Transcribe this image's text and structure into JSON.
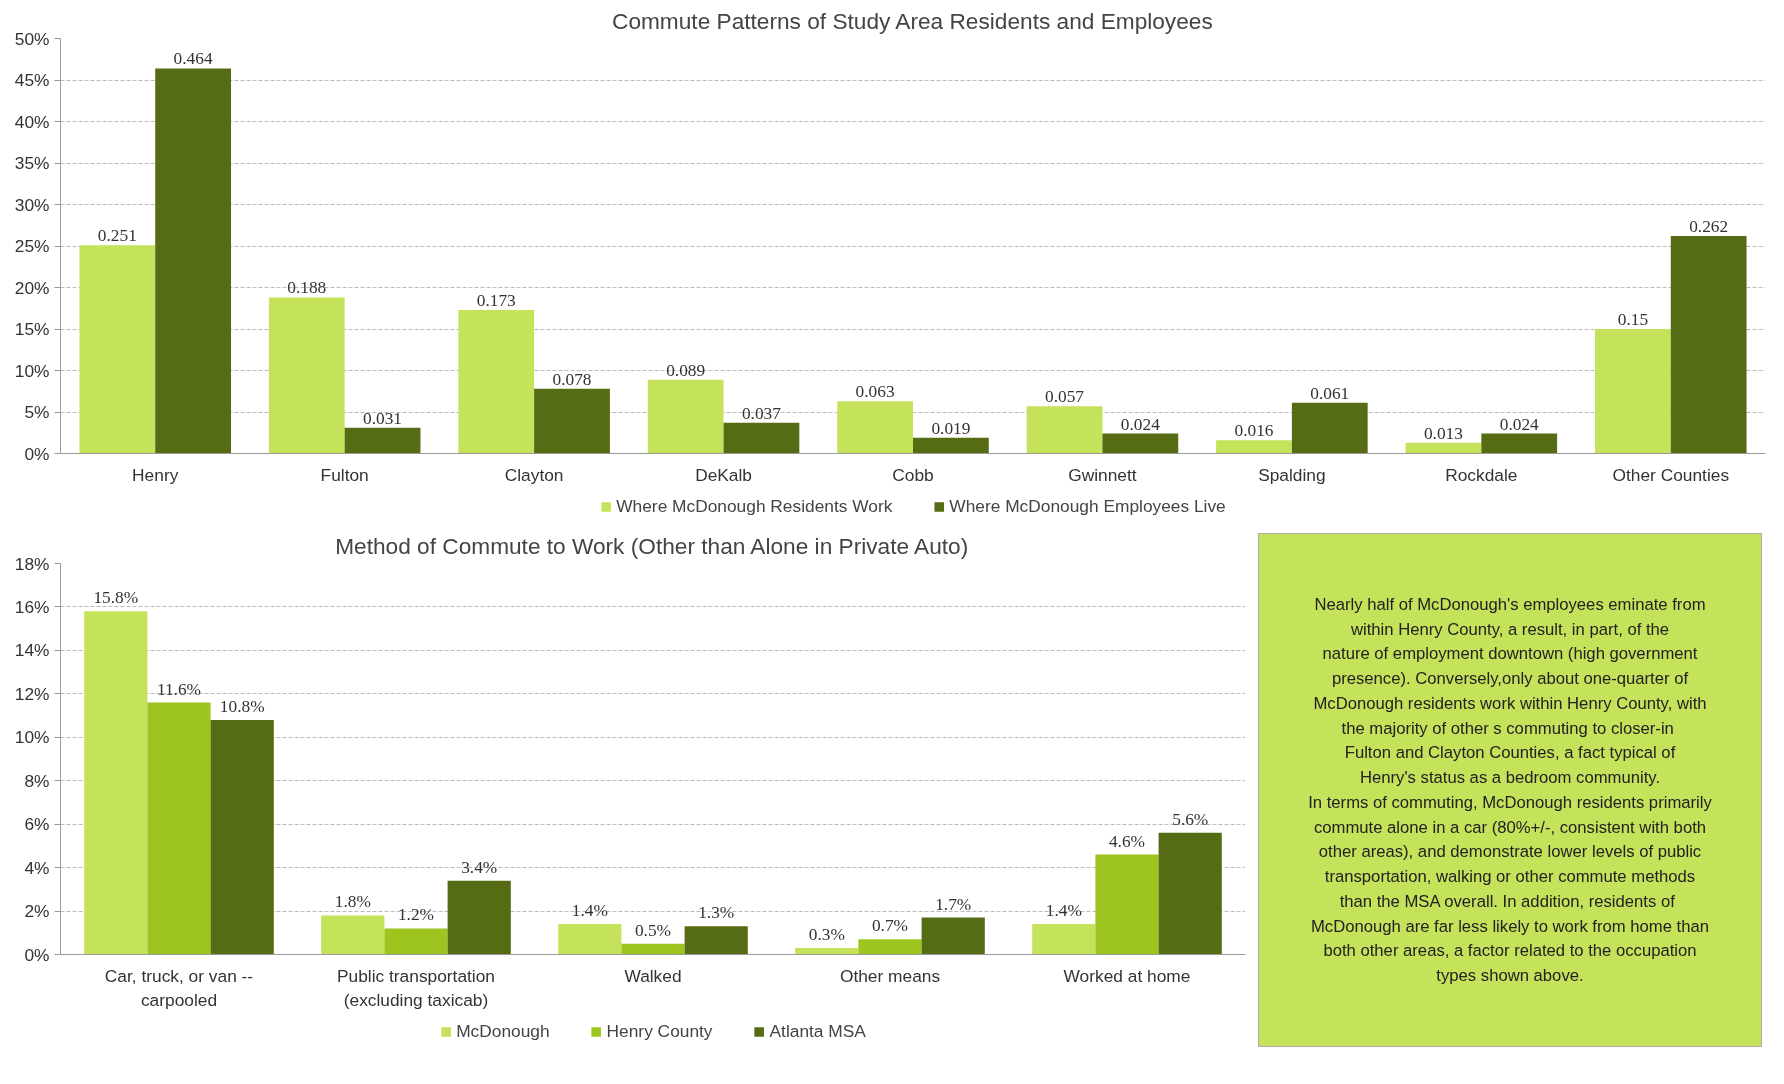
{
  "chart_data": [
    {
      "type": "bar",
      "title": "Commute Patterns of Study Area Residents and Employees",
      "categories": [
        "Henry",
        "Fulton",
        "Clayton",
        "DeKalb",
        "Cobb",
        "Gwinnett",
        "Spalding",
        "Rockdale",
        "Other Counties"
      ],
      "series": [
        {
          "name": "Where McDonough Residents Work",
          "color": "#c4e25a",
          "values": [
            0.251,
            0.188,
            0.173,
            0.089,
            0.063,
            0.057,
            0.016,
            0.013,
            0.15
          ],
          "value_labels": [
            "0.251",
            "0.188",
            "0.173",
            "0.089",
            "0.063",
            "0.057",
            "0.016",
            "0.013",
            "0.15"
          ]
        },
        {
          "name": "Where McDonough Employees Live",
          "color": "#556b14",
          "values": [
            0.464,
            0.031,
            0.078,
            0.037,
            0.019,
            0.024,
            0.061,
            0.024,
            0.262
          ],
          "value_labels": [
            "0.464",
            "0.031",
            "0.078",
            "0.037",
            "0.019",
            "0.024",
            "0.061",
            "0.024",
            "0.262"
          ]
        }
      ],
      "ylim": [
        0,
        0.5
      ],
      "yticks": [
        {
          "value": 0,
          "label": "0%"
        },
        {
          "value": 0.05,
          "label": "5%"
        },
        {
          "value": 0.1,
          "label": "10%"
        },
        {
          "value": 0.15,
          "label": "15%"
        },
        {
          "value": 0.2,
          "label": "20%"
        },
        {
          "value": 0.25,
          "label": "25%"
        },
        {
          "value": 0.3,
          "label": "30%"
        },
        {
          "value": 0.35,
          "label": "35%"
        },
        {
          "value": 0.4,
          "label": "40%"
        },
        {
          "value": 0.45,
          "label": "45%"
        },
        {
          "value": 0.5,
          "label": "50%"
        }
      ],
      "grid": "y",
      "legend": "bottom"
    },
    {
      "type": "bar",
      "title": "Method of Commute to Work (Other than Alone in Private Auto)",
      "categories": [
        "Car, truck, or van -- carpooled",
        "Public transportation (excluding taxicab)",
        "Walked",
        "Other means",
        "Worked at home"
      ],
      "series": [
        {
          "name": "McDonough",
          "color": "#c4e25a",
          "values": [
            15.8,
            1.8,
            1.4,
            0.3,
            1.4
          ],
          "value_labels": [
            "15.8%",
            "1.8%",
            "1.4%",
            "0.3%",
            "1.4%"
          ]
        },
        {
          "name": "Henry County",
          "color": "#9dc41f",
          "values": [
            11.6,
            1.2,
            0.5,
            0.7,
            4.6
          ],
          "value_labels": [
            "11.6%",
            "1.2%",
            "0.5%",
            "0.7%",
            "4.6%"
          ]
        },
        {
          "name": "Atlanta MSA",
          "color": "#556b14",
          "values": [
            10.8,
            3.4,
            1.3,
            1.7,
            5.6
          ],
          "value_labels": [
            "10.8%",
            "3.4%",
            "1.3%",
            "1.7%",
            "5.6%"
          ]
        }
      ],
      "ylim": [
        0,
        18
      ],
      "yticks": [
        {
          "value": 0,
          "label": "0%"
        },
        {
          "value": 2,
          "label": "2%"
        },
        {
          "value": 4,
          "label": "4%"
        },
        {
          "value": 6,
          "label": "6%"
        },
        {
          "value": 8,
          "label": "8%"
        },
        {
          "value": 10,
          "label": "10%"
        },
        {
          "value": 12,
          "label": "12%"
        },
        {
          "value": 14,
          "label": "14%"
        },
        {
          "value": 16,
          "label": "16%"
        },
        {
          "value": 18,
          "label": "18%"
        }
      ],
      "grid": "y",
      "legend": "bottom"
    },
    {
      "type": "other",
      "annotations": [
        "Nearly half of McDonough's employees eminate from within Henry County, a result, in part, of the nature of employment downtown (high government presence). Conversely,only about one-quarter of McDonough residents work within Henry County, with the majority of other s commuting  to closer-in Fulton and Clayton Counties, a fact typical of Henry's status as a bedroom community.",
        "In terms of commuting, McDonough residents primarily commute alone in a car (80%+/-, consistent with both other areas), and demonstrate lower levels of public transportation, walking or other commute methods than the MSA overall.  In addition, residents of McDonough are far less likely to work from home than both other areas, a factor related to the occupation types shown above."
      ]
    }
  ]
}
